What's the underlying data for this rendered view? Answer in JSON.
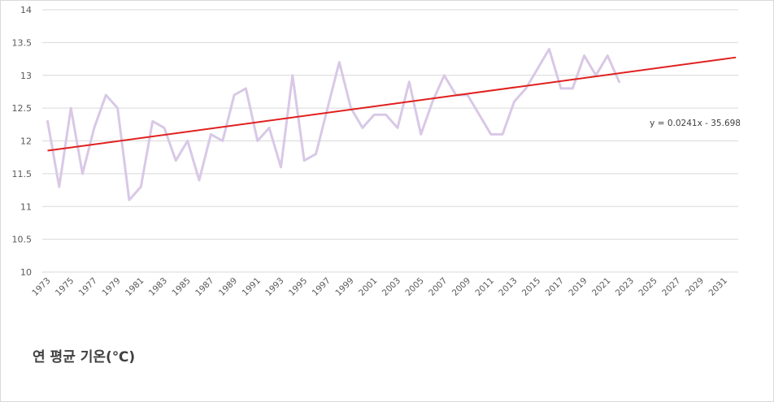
{
  "chart_data": {
    "type": "line",
    "title": "연 평균 기온(℃)",
    "xlabel": "",
    "ylabel": "",
    "ylim": [
      10,
      14
    ],
    "xlim": [
      1973,
      2032
    ],
    "y_ticks": [
      "10",
      "10.5",
      "11",
      "11.5",
      "12",
      "12.5",
      "13",
      "13.5",
      "14"
    ],
    "x_ticks": [
      "1973",
      "1975",
      "1977",
      "1979",
      "1981",
      "1983",
      "1985",
      "1987",
      "1989",
      "1991",
      "1993",
      "1995",
      "1997",
      "1999",
      "2001",
      "2003",
      "2005",
      "2007",
      "2009",
      "2011",
      "2013",
      "2015",
      "2017",
      "2019",
      "2021",
      "2023",
      "2025",
      "2027",
      "2029",
      "2031"
    ],
    "grid": true,
    "legend": "none",
    "series": [
      {
        "color": "#d9c8e6",
        "x": [
          1973,
          1974,
          1975,
          1976,
          1977,
          1978,
          1979,
          1980,
          1981,
          1982,
          1983,
          1984,
          1985,
          1986,
          1987,
          1988,
          1989,
          1990,
          1991,
          1992,
          1993,
          1994,
          1995,
          1996,
          1997,
          1998,
          1999,
          2000,
          2001,
          2002,
          2003,
          2004,
          2005,
          2006,
          2007,
          2008,
          2009,
          2011,
          2012,
          2013,
          2014,
          2016,
          2017,
          2018,
          2019,
          2020,
          2021,
          2022
        ],
        "values": [
          12.3,
          11.3,
          12.5,
          11.5,
          12.2,
          12.7,
          12.5,
          11.1,
          11.3,
          12.3,
          12.2,
          11.7,
          12.0,
          11.4,
          12.1,
          12.0,
          12.7,
          12.8,
          12.0,
          12.2,
          11.6,
          13.0,
          11.7,
          11.8,
          12.5,
          13.2,
          12.5,
          12.2,
          12.4,
          12.4,
          12.2,
          12.9,
          12.1,
          12.6,
          13.0,
          12.7,
          12.7,
          12.1,
          12.1,
          12.6,
          12.8,
          13.4,
          12.8,
          12.8,
          13.3,
          13.0,
          13.3,
          12.9
        ]
      }
    ],
    "trendline": {
      "color": "#e0201e",
      "slope": 0.0241,
      "intercept": -35.698,
      "x_range": [
        1973,
        2032
      ],
      "label": "y = 0.0241x - 35.698"
    }
  }
}
